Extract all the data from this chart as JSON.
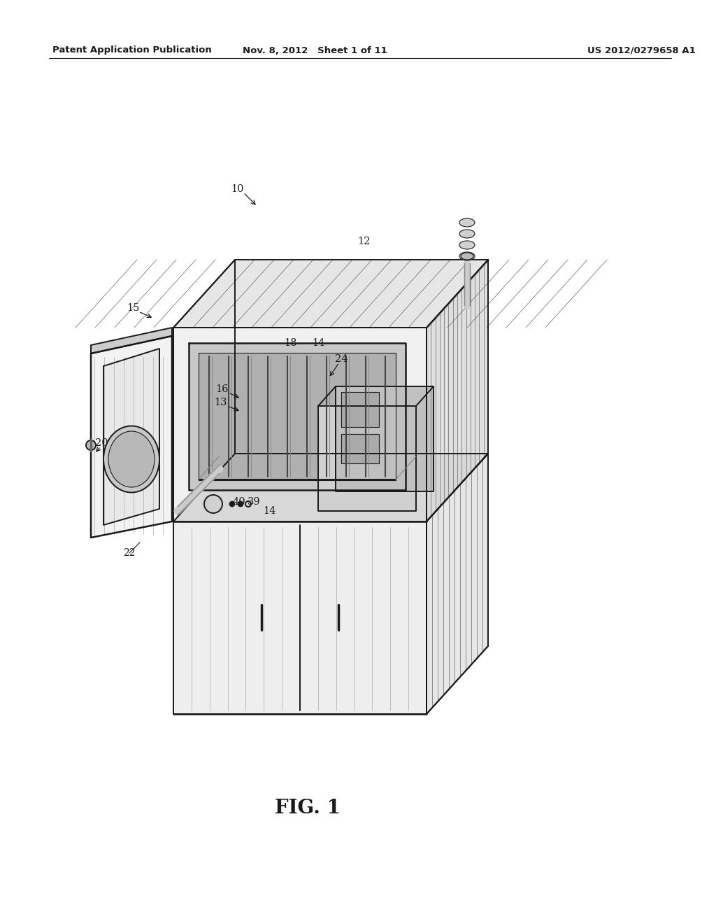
{
  "header_left": "Patent Application Publication",
  "header_center": "Nov. 8, 2012   Sheet 1 of 11",
  "header_right": "US 2012/0279658 A1",
  "fig_label": "FIG. 1",
  "bg": "#ffffff",
  "lc": "#1a1a1a",
  "gray1": "#e8e8e8",
  "gray2": "#d0d0d0",
  "gray3": "#b8b8b8",
  "gray4": "#f5f5f5",
  "hatch_color": "#888888"
}
